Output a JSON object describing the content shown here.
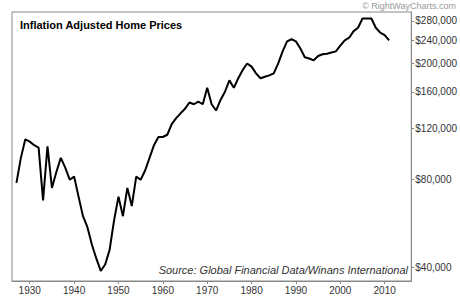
{
  "chart_data": {
    "type": "line",
    "title": "Inflation Adjusted Home Prices",
    "annotations": [
      "© RightWayCharts.com",
      "Source: Global Financial Data/Winans International"
    ],
    "x": [
      1927,
      1928,
      1929,
      1930,
      1931,
      1932,
      1933,
      1934,
      1935,
      1936,
      1937,
      1938,
      1939,
      1940,
      1941,
      1942,
      1943,
      1944,
      1945,
      1946,
      1947,
      1948,
      1949,
      1950,
      1951,
      1952,
      1953,
      1954,
      1955,
      1956,
      1957,
      1958,
      1959,
      1960,
      1961,
      1962,
      1963,
      1964,
      1965,
      1966,
      1967,
      1968,
      1969,
      1970,
      1971,
      1972,
      1973,
      1974,
      1975,
      1976,
      1977,
      1978,
      1979,
      1980,
      1981,
      1982,
      1983,
      1984,
      1985,
      1986,
      1987,
      1988,
      1989,
      1990,
      1991,
      1992,
      1993,
      1994,
      1995,
      1996,
      1997,
      1998,
      1999,
      2000,
      2001,
      2002,
      2003,
      2004,
      2005,
      2006,
      2007,
      2008,
      2009,
      2010,
      2011
    ],
    "values": [
      78000,
      95000,
      110000,
      108000,
      105000,
      103000,
      68000,
      104000,
      75000,
      85000,
      95000,
      88000,
      80000,
      82000,
      70000,
      60000,
      55000,
      48000,
      43000,
      39000,
      41000,
      46000,
      58000,
      70000,
      60000,
      75000,
      65000,
      82000,
      80000,
      86000,
      95000,
      105000,
      112000,
      112000,
      114000,
      124000,
      130000,
      135000,
      140000,
      147000,
      145000,
      148000,
      145000,
      165000,
      145000,
      138000,
      150000,
      160000,
      175000,
      165000,
      178000,
      190000,
      200000,
      195000,
      185000,
      178000,
      180000,
      182000,
      185000,
      200000,
      220000,
      238000,
      242000,
      238000,
      225000,
      210000,
      208000,
      205000,
      212000,
      215000,
      216000,
      218000,
      220000,
      230000,
      240000,
      245000,
      258000,
      265000,
      285000,
      285000,
      285000,
      265000,
      255000,
      250000,
      240000
    ],
    "color": "#000000",
    "log": "y",
    "grid": false,
    "xlim": [
      1926,
      2016
    ],
    "xticks": [
      1930,
      1940,
      1950,
      1960,
      1970,
      1980,
      1990,
      2000,
      2010
    ],
    "ylim": [
      36000,
      300000
    ],
    "yticks": [
      {
        "value": 40000,
        "label": "$40,000"
      },
      {
        "value": 80000,
        "label": "$80,000"
      },
      {
        "value": 120000,
        "label": "$120,000"
      },
      {
        "value": 160000,
        "label": "$160,000"
      },
      {
        "value": 200000,
        "label": "$200,000"
      },
      {
        "value": 240000,
        "label": "$240,000"
      },
      {
        "value": 280000,
        "label": "$280,000"
      }
    ]
  }
}
